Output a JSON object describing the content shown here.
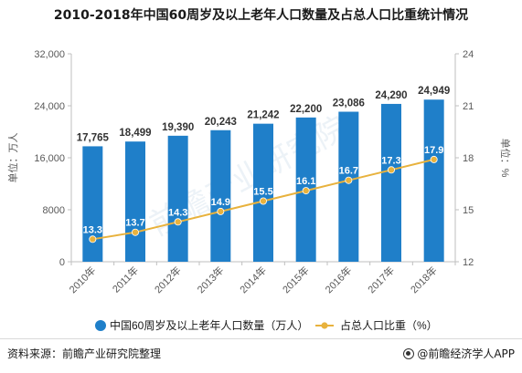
{
  "title": "2010-2018年中国60周岁及以上老年人口数量及占总人口比重统计情况",
  "chart_data": {
    "type": "bar",
    "categories": [
      "2010年",
      "2011年",
      "2012年",
      "2013年",
      "2014年",
      "2015年",
      "2016年",
      "2017年",
      "2018年"
    ],
    "series": [
      {
        "name": "中国60周岁及以上老年人口数量（万人）",
        "type": "bar",
        "axis": "left",
        "color": "#1f7fc9",
        "values": [
          17765,
          18499,
          19390,
          20243,
          21242,
          22200,
          23086,
          24290,
          24949
        ],
        "value_labels": [
          "17,765",
          "18,499",
          "19,390",
          "20,243",
          "21,242",
          "22,200",
          "23,086",
          "24,290",
          "24,949"
        ]
      },
      {
        "name": "占总人口比重（%）",
        "type": "line",
        "axis": "right",
        "color": "#e8b23d",
        "values": [
          13.3,
          13.7,
          14.3,
          14.9,
          15.5,
          16.1,
          16.7,
          17.3,
          17.9
        ],
        "value_labels": [
          "13.3",
          "13.7",
          "14.3",
          "14.9",
          "15.5",
          "16.1",
          "16.7",
          "17.3",
          "17.9"
        ]
      }
    ],
    "y_left": {
      "label": "单位：万人",
      "ylim": [
        0,
        32000
      ],
      "ticks": [
        0,
        8000,
        16000,
        24000,
        32000
      ],
      "tick_labels": [
        "0",
        "8000",
        "16,000",
        "24,000",
        "32,000"
      ]
    },
    "y_right": {
      "label": "单位：%",
      "ylim": [
        12,
        24
      ],
      "ticks": [
        12,
        15,
        18,
        21,
        24
      ],
      "tick_labels": [
        "12",
        "15",
        "18",
        "21",
        "24"
      ]
    },
    "grid": false,
    "legend_position": "bottom"
  },
  "footer": {
    "source": "资料来源：前瞻产业研究院整理",
    "brand": "@前瞻经济学人APP"
  },
  "colors": {
    "bar": "#1f7fc9",
    "line": "#e8b23d",
    "axis": "#bfbfbf",
    "text": "#595959"
  }
}
